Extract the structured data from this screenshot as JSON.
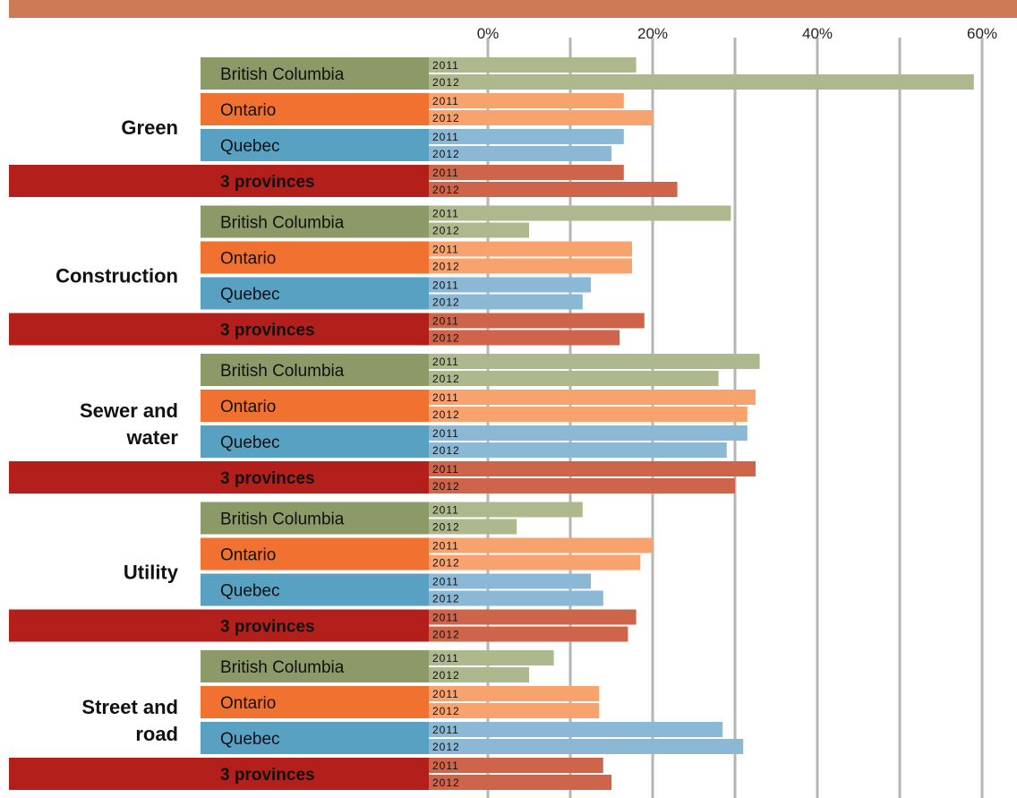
{
  "colors": {
    "top_band": "#CE7A57",
    "grid": "#B5B5B5",
    "label_bc": "#8B9A67",
    "bar_bc": "#ADB98D",
    "label_on": "#F07130",
    "bar_on": "#F8A36D",
    "label_qc": "#58A1C2",
    "bar_qc": "#8BB9D5",
    "label_total": "#B31F1A",
    "bar_total": "#CE654A"
  },
  "chart_data": {
    "type": "bar",
    "orientation": "horizontal",
    "x_ticks": [
      "0%",
      "20%",
      "40%",
      "60%"
    ],
    "xlim": [
      0,
      60
    ],
    "grid": true,
    "years": [
      "2011",
      "2012"
    ],
    "groups": [
      {
        "label_lines": [
          "Green"
        ],
        "rows": [
          {
            "name": "British Columbia",
            "key": "bc",
            "values": [
              18,
              59
            ]
          },
          {
            "name": "Ontario",
            "key": "on",
            "values": [
              16.5,
              20
            ]
          },
          {
            "name": "Quebec",
            "key": "qc",
            "values": [
              16.5,
              15
            ]
          },
          {
            "name": "3 provinces",
            "key": "total",
            "values": [
              16.5,
              23
            ]
          }
        ]
      },
      {
        "label_lines": [
          "Construction"
        ],
        "rows": [
          {
            "name": "British Columbia",
            "key": "bc",
            "values": [
              29.5,
              5
            ]
          },
          {
            "name": "Ontario",
            "key": "on",
            "values": [
              17.5,
              17.5
            ]
          },
          {
            "name": "Quebec",
            "key": "qc",
            "values": [
              12.5,
              11.5
            ]
          },
          {
            "name": "3 provinces",
            "key": "total",
            "values": [
              19,
              16
            ]
          }
        ]
      },
      {
        "label_lines": [
          "Sewer and",
          "water"
        ],
        "rows": [
          {
            "name": "British Columbia",
            "key": "bc",
            "values": [
              33,
              28
            ]
          },
          {
            "name": "Ontario",
            "key": "on",
            "values": [
              32.5,
              31.5
            ]
          },
          {
            "name": "Quebec",
            "key": "qc",
            "values": [
              31.5,
              29
            ]
          },
          {
            "name": "3 provinces",
            "key": "total",
            "values": [
              32.5,
              30
            ]
          }
        ]
      },
      {
        "label_lines": [
          "Utility"
        ],
        "rows": [
          {
            "name": "British Columbia",
            "key": "bc",
            "values": [
              11.5,
              3.5
            ]
          },
          {
            "name": "Ontario",
            "key": "on",
            "values": [
              20,
              18.5
            ]
          },
          {
            "name": "Quebec",
            "key": "qc",
            "values": [
              12.5,
              14
            ]
          },
          {
            "name": "3 provinces",
            "key": "total",
            "values": [
              18,
              17
            ]
          }
        ]
      },
      {
        "label_lines": [
          "Street and",
          "road"
        ],
        "rows": [
          {
            "name": "British Columbia",
            "key": "bc",
            "values": [
              8,
              5
            ]
          },
          {
            "name": "Ontario",
            "key": "on",
            "values": [
              13.5,
              13.5
            ]
          },
          {
            "name": "Quebec",
            "key": "qc",
            "values": [
              28.5,
              31
            ]
          },
          {
            "name": "3 provinces",
            "key": "total",
            "values": [
              14,
              15
            ]
          }
        ]
      }
    ]
  }
}
